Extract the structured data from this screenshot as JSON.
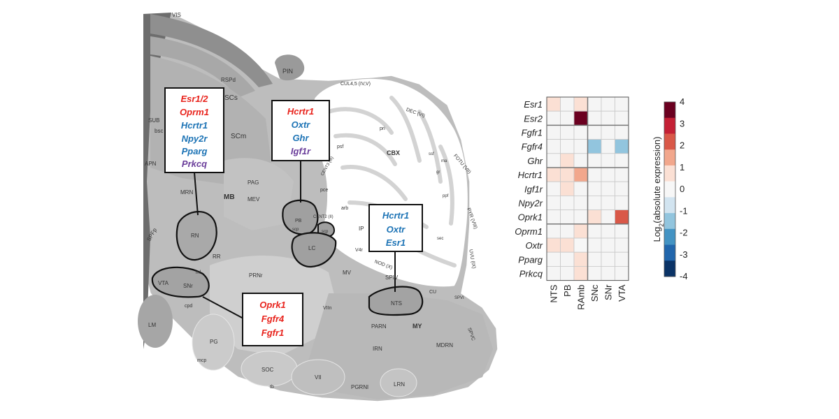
{
  "colors": {
    "red": "#e8231c",
    "blue": "#1c73b5",
    "purple": "#6a3d9a"
  },
  "brain_labels": {
    "vis": "VIS",
    "rspd": "RSPd",
    "pin": "PIN",
    "scs": "SCs",
    "scm": "SCm",
    "sub": "SUB",
    "bsc": "bsc",
    "apn": "APN",
    "mrn": "MRN",
    "mb": "MB",
    "pag": "PAG",
    "mev": "MEV",
    "rn": "RN",
    "spfp": "SPFp",
    "rr": "RR",
    "prnr": "PRNr",
    "vta": "VTA",
    "snr": "SNr",
    "ml": "ml",
    "cpd": "cpd",
    "lm": "LM",
    "pg": "PG",
    "mcp": "mcp",
    "ii": "II",
    "soc": "SOC",
    "tb": "tb",
    "vii": "VII",
    "pgrnl": "PGRNl",
    "lrn": "LRN",
    "irn": "IRN",
    "parn": "PARN",
    "my": "MY",
    "mdrn": "MDRN",
    "spvc": "SPVC",
    "spiv": "SPIV",
    "cu": "CU",
    "spvi": "SPVI",
    "mv": "MV",
    "viin": "VIIn",
    "v4r": "V4r",
    "nts": "NTS",
    "nod": "NOD (X)",
    "ip": "IP",
    "pb": "PB",
    "scp": "scp",
    "scp2": "scp",
    "lc": "LC",
    "cent2": "CENT2 (II)",
    "cent3": "CENT3 (III)",
    "arb": "arb",
    "pce": "pce",
    "psf": "psf",
    "pri": "pri",
    "cul": "CUL4,5 (IV,V)",
    "dec": "DEC (VI)",
    "cbx": "CBX",
    "ssf": "ssf",
    "ma": "ma",
    "gr": "gr",
    "fotu": "FOTU (VII)",
    "ppf": "ppf",
    "pyr": "PYR (VIII)",
    "sec": "sec",
    "uvu": "UVU (IX)"
  },
  "gene_boxes": [
    {
      "genes": [
        {
          "name": "Esr1/2",
          "color": "red"
        },
        {
          "name": "Oprm1",
          "color": "red"
        },
        {
          "name": "Hcrtr1",
          "color": "blue"
        },
        {
          "name": "Npy2r",
          "color": "blue"
        },
        {
          "name": "Pparg",
          "color": "blue"
        },
        {
          "name": "Prkcq",
          "color": "purple"
        }
      ]
    },
    {
      "genes": [
        {
          "name": "Hcrtr1",
          "color": "red"
        },
        {
          "name": "Oxtr",
          "color": "blue"
        },
        {
          "name": "Ghr",
          "color": "blue"
        },
        {
          "name": "Igf1r",
          "color": "purple"
        }
      ]
    },
    {
      "genes": [
        {
          "name": "Hcrtr1",
          "color": "blue"
        },
        {
          "name": "Oxtr",
          "color": "blue"
        },
        {
          "name": "Esr1",
          "color": "blue"
        }
      ]
    },
    {
      "genes": [
        {
          "name": "Oprk1",
          "color": "red"
        },
        {
          "name": "Fgfr4",
          "color": "red"
        },
        {
          "name": "Fgfr1",
          "color": "red"
        }
      ]
    }
  ],
  "chart_data": {
    "type": "heatmap",
    "rows": [
      "Esr1",
      "Esr2",
      "Fgfr1",
      "Fgfr4",
      "Ghr",
      "Hcrtr1",
      "Igf1r",
      "Npy2r",
      "Oprk1",
      "Oprm1",
      "Oxtr",
      "Pparg",
      "Prkcq"
    ],
    "columns": [
      "NTS",
      "PB",
      "RAmb",
      "SNc",
      "SNr",
      "VTA"
    ],
    "values": [
      [
        0.5,
        0,
        0.5,
        0,
        0,
        0
      ],
      [
        0,
        0,
        4,
        0,
        0,
        0
      ],
      [
        0,
        0,
        0,
        0,
        0,
        0
      ],
      [
        0,
        0,
        0,
        -1.2,
        0,
        -1.2
      ],
      [
        0,
        0.5,
        0,
        0,
        0,
        0
      ],
      [
        0.5,
        0.6,
        1.3,
        0,
        0,
        0
      ],
      [
        0,
        0.5,
        0,
        0,
        0,
        0
      ],
      [
        0,
        0,
        0,
        0,
        0,
        0
      ],
      [
        0,
        0,
        0,
        0.5,
        0,
        2.2
      ],
      [
        0,
        0,
        0.5,
        0,
        0,
        0
      ],
      [
        0.5,
        0.5,
        0.3,
        0,
        0,
        0
      ],
      [
        0,
        0,
        0.5,
        0,
        0,
        0
      ],
      [
        0,
        0,
        1.2,
        0,
        0,
        0
      ]
    ],
    "row_groups": [
      [
        0,
        1
      ],
      [
        2,
        3,
        4
      ],
      [
        5,
        6,
        7,
        8
      ],
      [
        9,
        10,
        11,
        12
      ]
    ],
    "colorbar": {
      "label": "Log2(absolute expression)",
      "label_main": "Log",
      "label_sub": "2",
      "label_rest": "(absolute expression)",
      "ticks": [
        "4",
        "3",
        "2",
        "1",
        "0",
        "-1",
        "-2",
        "-3",
        "-4"
      ],
      "range": [
        -4,
        4
      ],
      "colors": [
        "#6b0020",
        "#c42035",
        "#d95848",
        "#f2a78c",
        "#fbe0d4",
        "#f7f7f7",
        "#d2e4f0",
        "#92c5de",
        "#4393c3",
        "#2166ac",
        "#0a3366"
      ]
    }
  }
}
